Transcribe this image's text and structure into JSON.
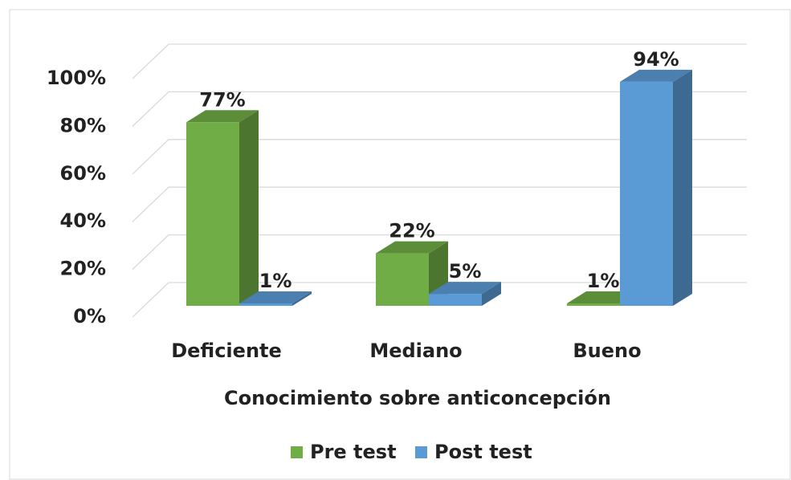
{
  "chart_data": {
    "type": "bar3d",
    "x_label": "Conocimiento sobre anticoncepción",
    "categories": [
      "Deficiente",
      "Mediano",
      "Bueno"
    ],
    "series": [
      {
        "name": "Pre test",
        "color": "#70ad47",
        "values": [
          77,
          22,
          1
        ],
        "value_labels": [
          "77%",
          "22%",
          "1%"
        ]
      },
      {
        "name": "Post test",
        "color": "#5b9bd5",
        "values": [
          1,
          5,
          94
        ],
        "value_labels": [
          "1%",
          "5%",
          "94%"
        ]
      }
    ],
    "ylim": [
      0,
      100
    ],
    "yticks": [
      {
        "value": 0,
        "label": "0%"
      },
      {
        "value": 20,
        "label": "20%"
      },
      {
        "value": 40,
        "label": "40%"
      },
      {
        "value": 60,
        "label": "60%"
      },
      {
        "value": 80,
        "label": "80%"
      },
      {
        "value": 100,
        "label": "100%"
      }
    ],
    "grid": true,
    "legend": "bottom"
  }
}
